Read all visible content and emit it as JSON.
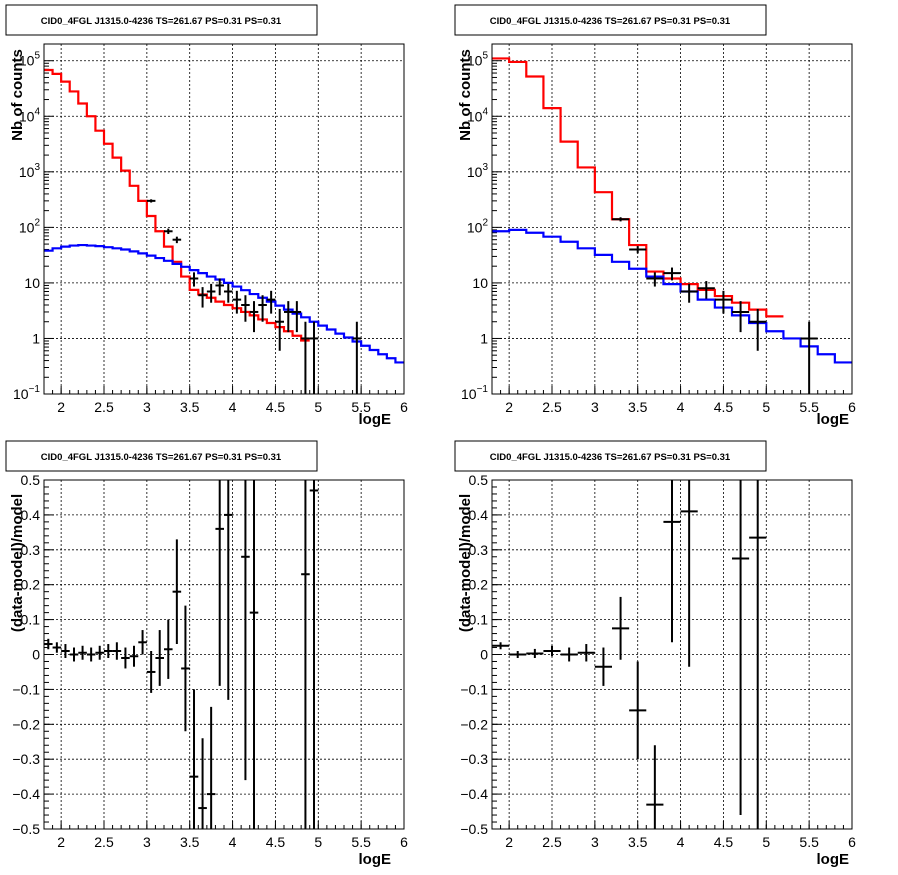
{
  "chart_data": [
    {
      "type": "histogram",
      "title": "CID0_4FGL J1315.0-4236 TS=261.67 PS=0.31 PS=0.31",
      "xlabel": "logE",
      "ylabel": "Nb of counts",
      "xlim": [
        1.8,
        6.0
      ],
      "ylim": [
        0.1,
        200000
      ],
      "yscale": "log",
      "grid": true,
      "bin_width": 0.1,
      "x_ticks": [
        "2",
        "2.5",
        "3",
        "3.5",
        "4",
        "4.5",
        "5",
        "5.5",
        "6"
      ],
      "y_ticks": [
        {
          "v": 0.1,
          "base": "10",
          "exp": "−1"
        },
        {
          "v": 1,
          "label": "1"
        },
        {
          "v": 10,
          "label": "10"
        },
        {
          "v": 100,
          "base": "10",
          "exp": "2"
        },
        {
          "v": 1000,
          "base": "10",
          "exp": "3"
        },
        {
          "v": 10000,
          "base": "10",
          "exp": "4"
        },
        {
          "v": 100000,
          "base": "10",
          "exp": "5"
        }
      ],
      "series": [
        {
          "kind": "step",
          "color": "#ff0000",
          "x_start": 1.8,
          "values": [
            68000,
            58000,
            42000,
            28000,
            17000,
            10000,
            5500,
            3200,
            1800,
            1050,
            560,
            300,
            160,
            85,
            45,
            24,
            13,
            7.5,
            6.2,
            5.4,
            4.6,
            4.0,
            3.5,
            3.0,
            2.6,
            2.2,
            1.9,
            1.6,
            1.35,
            1.12,
            0.92
          ]
        },
        {
          "kind": "step",
          "color": "#0000ff",
          "x_start": 1.8,
          "values": [
            38,
            42,
            45,
            47,
            48,
            47,
            46,
            44,
            42,
            40,
            37,
            34,
            31,
            28,
            25,
            22,
            19.5,
            17,
            15,
            13,
            11.5,
            10,
            8.6,
            7.4,
            6.3,
            5.4,
            4.6,
            3.9,
            3.3,
            2.8,
            2.4,
            2.0,
            1.7,
            1.45,
            1.22,
            1.04,
            0.88,
            0.74,
            0.62,
            0.52,
            0.44,
            0.37
          ]
        },
        {
          "kind": "points",
          "color": "#000000",
          "points": [
            {
              "x": 3.05,
              "y": 300,
              "lo": 280,
              "hi": 320
            },
            {
              "x": 3.25,
              "y": 85,
              "lo": 76,
              "hi": 95
            },
            {
              "x": 3.35,
              "y": 60,
              "lo": 52,
              "hi": 68
            },
            {
              "x": 3.55,
              "y": 12,
              "lo": 8.6,
              "hi": 15.5
            },
            {
              "x": 3.65,
              "y": 6,
              "lo": 3.6,
              "hi": 8.4
            },
            {
              "x": 3.75,
              "y": 7,
              "lo": 4.4,
              "hi": 9.6
            },
            {
              "x": 3.85,
              "y": 9,
              "lo": 6,
              "hi": 12
            },
            {
              "x": 3.95,
              "y": 7,
              "lo": 4.4,
              "hi": 9.6
            },
            {
              "x": 4.05,
              "y": 5,
              "lo": 2.8,
              "hi": 7.2
            },
            {
              "x": 4.15,
              "y": 4,
              "lo": 2,
              "hi": 6
            },
            {
              "x": 4.25,
              "y": 3,
              "lo": 1.3,
              "hi": 4.7
            },
            {
              "x": 4.35,
              "y": 4,
              "lo": 2,
              "hi": 6
            },
            {
              "x": 4.45,
              "y": 5,
              "lo": 2.8,
              "hi": 7.2
            },
            {
              "x": 4.55,
              "y": 2,
              "lo": 0.6,
              "hi": 3.4
            },
            {
              "x": 4.65,
              "y": 3,
              "lo": 1.3,
              "hi": 4.7
            },
            {
              "x": 4.75,
              "y": 3,
              "lo": 1.3,
              "hi": 4.7
            },
            {
              "x": 4.85,
              "y": 1,
              "lo": 0.1,
              "hi": 2
            },
            {
              "x": 4.95,
              "y": 1,
              "lo": 0.1,
              "hi": 2
            },
            {
              "x": 5.45,
              "y": 1,
              "lo": 0.1,
              "hi": 2
            }
          ]
        }
      ]
    },
    {
      "type": "histogram",
      "title": "CID0_4FGL J1315.0-4236 TS=261.67 PS=0.31 PS=0.31",
      "xlabel": "logE",
      "ylabel": "Nb of counts",
      "xlim": [
        1.8,
        6.0
      ],
      "ylim": [
        0.1,
        200000
      ],
      "yscale": "log",
      "grid": true,
      "bin_width": 0.2,
      "x_ticks": [
        "2",
        "2.5",
        "3",
        "3.5",
        "4",
        "4.5",
        "5",
        "5.5",
        "6"
      ],
      "y_ticks": [
        {
          "v": 0.1,
          "base": "10",
          "exp": "−1"
        },
        {
          "v": 1,
          "label": "1"
        },
        {
          "v": 10,
          "label": "10"
        },
        {
          "v": 100,
          "base": "10",
          "exp": "2"
        },
        {
          "v": 1000,
          "base": "10",
          "exp": "3"
        },
        {
          "v": 10000,
          "base": "10",
          "exp": "4"
        },
        {
          "v": 100000,
          "base": "10",
          "exp": "5"
        }
      ],
      "series": [
        {
          "kind": "step",
          "color": "#ff0000",
          "x_start": 1.8,
          "values": [
            110000,
            95000,
            52000,
            14000,
            3500,
            1200,
            430,
            140,
            48,
            16,
            12,
            9.5,
            7.5,
            5.8,
            4.4,
            3.3,
            2.5
          ]
        },
        {
          "kind": "step",
          "color": "#0000ff",
          "x_start": 1.8,
          "values": [
            85,
            90,
            80,
            68,
            55,
            42,
            32,
            24,
            18,
            13,
            9.5,
            7,
            5,
            3.6,
            2.6,
            1.9,
            1.35,
            1.0,
            0.72,
            0.52,
            0.37
          ]
        },
        {
          "kind": "points",
          "color": "#000000",
          "points": [
            {
              "x": 3.3,
              "y": 140,
              "lo": 128,
              "hi": 152
            },
            {
              "x": 3.5,
              "y": 40,
              "lo": 34,
              "hi": 46
            },
            {
              "x": 3.7,
              "y": 12,
              "lo": 8.6,
              "hi": 15.5
            },
            {
              "x": 3.9,
              "y": 15,
              "lo": 11.1,
              "hi": 18.9
            },
            {
              "x": 4.1,
              "y": 7,
              "lo": 4.4,
              "hi": 9.6
            },
            {
              "x": 4.3,
              "y": 8,
              "lo": 5.2,
              "hi": 10.8
            },
            {
              "x": 4.5,
              "y": 5,
              "lo": 2.8,
              "hi": 7.2
            },
            {
              "x": 4.7,
              "y": 3,
              "lo": 1.3,
              "hi": 4.7
            },
            {
              "x": 4.9,
              "y": 2,
              "lo": 0.6,
              "hi": 3.4
            },
            {
              "x": 5.5,
              "y": 1,
              "lo": 0.1,
              "hi": 2
            }
          ]
        }
      ]
    },
    {
      "type": "scatter",
      "title": "CID0_4FGL J1315.0-4236 TS=261.67 PS=0.31 PS=0.31",
      "xlabel": "logE",
      "ylabel": "(data-model)/model",
      "xlim": [
        1.8,
        6.0
      ],
      "ylim": [
        -0.5,
        0.5
      ],
      "yscale": "linear",
      "grid": true,
      "bin_width": 0.1,
      "x_ticks": [
        "2",
        "2.5",
        "3",
        "3.5",
        "4",
        "4.5",
        "5",
        "5.5",
        "6"
      ],
      "y_ticks": [
        {
          "v": -0.5,
          "label": "−0.5"
        },
        {
          "v": -0.4,
          "label": "−0.4"
        },
        {
          "v": -0.3,
          "label": "−0.3"
        },
        {
          "v": -0.2,
          "label": "−0.2"
        },
        {
          "v": -0.1,
          "label": "−0.1"
        },
        {
          "v": 0,
          "label": "0"
        },
        {
          "v": 0.1,
          "label": "0.1"
        },
        {
          "v": 0.2,
          "label": "0.2"
        },
        {
          "v": 0.3,
          "label": "0.3"
        },
        {
          "v": 0.4,
          "label": "0.4"
        },
        {
          "v": 0.5,
          "label": "0.5"
        }
      ],
      "series": [
        {
          "kind": "points",
          "color": "#000000",
          "points": [
            {
              "x": 1.85,
              "y": 0.03,
              "lo": 0.015,
              "hi": 0.045
            },
            {
              "x": 1.95,
              "y": 0.02,
              "lo": 0.005,
              "hi": 0.035
            },
            {
              "x": 2.05,
              "y": 0.01,
              "lo": -0.01,
              "hi": 0.03
            },
            {
              "x": 2.15,
              "y": 0.0,
              "lo": -0.02,
              "hi": 0.02
            },
            {
              "x": 2.25,
              "y": 0.005,
              "lo": -0.015,
              "hi": 0.025
            },
            {
              "x": 2.35,
              "y": 0.0,
              "lo": -0.02,
              "hi": 0.02
            },
            {
              "x": 2.45,
              "y": 0.005,
              "lo": -0.015,
              "hi": 0.025
            },
            {
              "x": 2.55,
              "y": 0.01,
              "lo": -0.01,
              "hi": 0.03
            },
            {
              "x": 2.65,
              "y": 0.01,
              "lo": -0.015,
              "hi": 0.035
            },
            {
              "x": 2.75,
              "y": -0.01,
              "lo": -0.04,
              "hi": 0.02
            },
            {
              "x": 2.85,
              "y": -0.005,
              "lo": -0.035,
              "hi": 0.025
            },
            {
              "x": 2.95,
              "y": 0.035,
              "lo": 0.0,
              "hi": 0.07
            },
            {
              "x": 3.05,
              "y": -0.05,
              "lo": -0.11,
              "hi": 0.01
            },
            {
              "x": 3.15,
              "y": -0.01,
              "lo": -0.09,
              "hi": 0.07
            },
            {
              "x": 3.25,
              "y": 0.015,
              "lo": -0.07,
              "hi": 0.1
            },
            {
              "x": 3.35,
              "y": 0.18,
              "lo": 0.03,
              "hi": 0.33
            },
            {
              "x": 3.45,
              "y": -0.04,
              "lo": -0.22,
              "hi": 0.14
            },
            {
              "x": 3.55,
              "y": -0.35,
              "lo": -0.6,
              "hi": -0.1
            },
            {
              "x": 3.65,
              "y": -0.44,
              "lo": -0.7,
              "hi": -0.24
            },
            {
              "x": 3.75,
              "y": -0.4,
              "lo": -0.65,
              "hi": -0.15
            },
            {
              "x": 3.85,
              "y": 0.36,
              "lo": -0.09,
              "hi": 0.81
            },
            {
              "x": 3.95,
              "y": 0.4,
              "lo": -0.13,
              "hi": 0.93
            },
            {
              "x": 4.15,
              "y": 0.28,
              "lo": -0.36,
              "hi": 0.92
            },
            {
              "x": 4.25,
              "y": 0.12,
              "lo": -0.6,
              "hi": 0.84
            },
            {
              "x": 4.85,
              "y": 0.23,
              "lo": -0.6,
              "hi": 1.2
            },
            {
              "x": 4.95,
              "y": 0.47,
              "lo": -0.55,
              "hi": 1.5
            }
          ]
        }
      ]
    },
    {
      "type": "scatter",
      "title": "CID0_4FGL J1315.0-4236 TS=261.67 PS=0.31 PS=0.31",
      "xlabel": "logE",
      "ylabel": "(data-model)/model",
      "xlim": [
        1.8,
        6.0
      ],
      "ylim": [
        -0.5,
        0.5
      ],
      "yscale": "linear",
      "grid": true,
      "bin_width": 0.2,
      "x_ticks": [
        "2",
        "2.5",
        "3",
        "3.5",
        "4",
        "4.5",
        "5",
        "5.5",
        "6"
      ],
      "y_ticks": [
        {
          "v": -0.5,
          "label": "−0.5"
        },
        {
          "v": -0.4,
          "label": "−0.4"
        },
        {
          "v": -0.3,
          "label": "−0.3"
        },
        {
          "v": -0.2,
          "label": "−0.2"
        },
        {
          "v": -0.1,
          "label": "−0.1"
        },
        {
          "v": 0,
          "label": "0"
        },
        {
          "v": 0.1,
          "label": "0.1"
        },
        {
          "v": 0.2,
          "label": "0.2"
        },
        {
          "v": 0.3,
          "label": "0.3"
        },
        {
          "v": 0.4,
          "label": "0.4"
        },
        {
          "v": 0.5,
          "label": "0.5"
        }
      ],
      "series": [
        {
          "kind": "points",
          "color": "#000000",
          "points": [
            {
              "x": 1.9,
              "y": 0.025,
              "lo": 0.015,
              "hi": 0.035
            },
            {
              "x": 2.1,
              "y": 0.0,
              "lo": -0.01,
              "hi": 0.01
            },
            {
              "x": 2.3,
              "y": 0.003,
              "lo": -0.01,
              "hi": 0.016
            },
            {
              "x": 2.5,
              "y": 0.01,
              "lo": -0.005,
              "hi": 0.025
            },
            {
              "x": 2.7,
              "y": 0.0,
              "lo": -0.02,
              "hi": 0.02
            },
            {
              "x": 2.9,
              "y": 0.005,
              "lo": -0.02,
              "hi": 0.03
            },
            {
              "x": 3.1,
              "y": -0.035,
              "lo": -0.09,
              "hi": 0.02
            },
            {
              "x": 3.3,
              "y": 0.075,
              "lo": -0.015,
              "hi": 0.165
            },
            {
              "x": 3.5,
              "y": -0.16,
              "lo": -0.3,
              "hi": -0.02
            },
            {
              "x": 3.7,
              "y": -0.43,
              "lo": -0.6,
              "hi": -0.26
            },
            {
              "x": 3.9,
              "y": 0.38,
              "lo": 0.035,
              "hi": 0.725
            },
            {
              "x": 4.1,
              "y": 0.41,
              "lo": -0.035,
              "hi": 0.855
            },
            {
              "x": 4.7,
              "y": 0.275,
              "lo": -0.46,
              "hi": 1.2
            },
            {
              "x": 4.9,
              "y": 0.335,
              "lo": -0.6,
              "hi": 1.3
            }
          ]
        }
      ]
    }
  ]
}
